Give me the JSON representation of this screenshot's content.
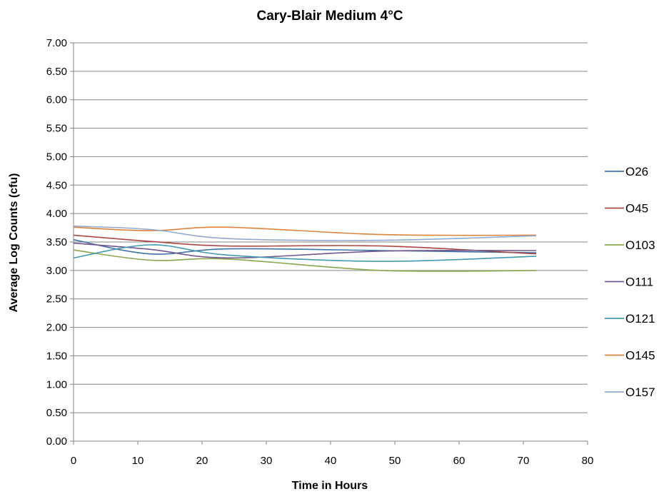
{
  "chart_data": {
    "type": "line",
    "title": "Cary-Blair  Medium 4°C",
    "xlabel": "Time in Hours",
    "ylabel": "Average Log Counts (cfu)",
    "xlim": [
      0,
      80
    ],
    "ylim": [
      0,
      7
    ],
    "x_ticks": [
      "0",
      "10",
      "20",
      "30",
      "40",
      "50",
      "60",
      "70",
      "80"
    ],
    "y_ticks": [
      "0.00",
      "0.50",
      "1.00",
      "1.50",
      "2.00",
      "2.50",
      "3.00",
      "3.50",
      "4.00",
      "4.50",
      "5.00",
      "5.50",
      "6.00",
      "6.50",
      "7.00"
    ],
    "grid": "horizontal",
    "legend_position": "right",
    "x": [
      0,
      12,
      24,
      48,
      72
    ],
    "series": [
      {
        "name": "O26",
        "color": "#4572a7",
        "values": [
          3.54,
          3.29,
          3.38,
          3.35,
          3.31
        ]
      },
      {
        "name": "O45",
        "color": "#aa4643",
        "values": [
          3.62,
          3.51,
          3.43,
          3.43,
          3.29
        ]
      },
      {
        "name": "O103",
        "color": "#89a54e",
        "values": [
          3.36,
          3.18,
          3.2,
          3.0,
          3.0
        ]
      },
      {
        "name": "O111",
        "color": "#71588f",
        "values": [
          3.48,
          3.37,
          3.22,
          3.34,
          3.35
        ]
      },
      {
        "name": "O121",
        "color": "#4198af",
        "values": [
          3.22,
          3.45,
          3.27,
          3.16,
          3.25
        ]
      },
      {
        "name": "O145",
        "color": "#db843d",
        "values": [
          3.76,
          3.7,
          3.76,
          3.63,
          3.62
        ]
      },
      {
        "name": "O157",
        "color": "#93a9cf",
        "values": [
          3.78,
          3.72,
          3.56,
          3.53,
          3.61
        ]
      }
    ]
  }
}
